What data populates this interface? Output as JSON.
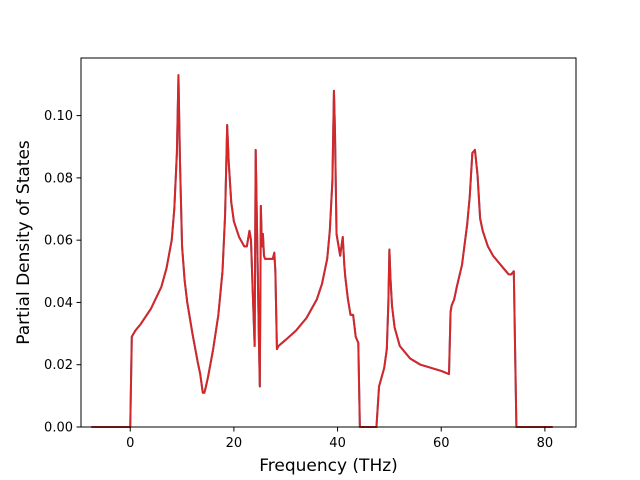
{
  "chart_data": {
    "type": "line",
    "title": "",
    "xlabel": "Frequency (THz)",
    "ylabel": "Partial Density of States",
    "xlim": [
      -9.5,
      86
    ],
    "ylim": [
      0,
      0.1185
    ],
    "xticks": [
      0,
      20,
      40,
      60,
      80
    ],
    "xtick_labels": [
      "0",
      "20",
      "40",
      "60",
      "80"
    ],
    "yticks": [
      0.0,
      0.02,
      0.04,
      0.06,
      0.08,
      0.1
    ],
    "ytick_labels": [
      "0.00",
      "0.02",
      "0.04",
      "0.06",
      "0.08",
      "0.10"
    ],
    "grid": false,
    "series": [
      {
        "color": "#2f7fbf",
        "x": [
          -7.5,
          -0.2,
          0.0,
          0.3,
          1.0,
          2.0,
          4.0,
          6.0,
          7.0,
          8.0,
          8.5,
          9.0,
          9.3,
          9.6,
          10.0,
          10.5,
          11.0,
          12.0,
          13.0,
          13.5,
          14.0,
          14.3,
          14.6,
          15.0,
          16.0,
          17.0,
          17.8,
          18.3,
          18.7,
          19.0,
          19.5,
          20.0,
          21.0,
          22.0,
          22.5,
          23.0,
          23.3,
          23.6,
          24.0,
          24.2,
          24.5,
          24.8,
          25.0,
          25.2,
          25.4,
          25.6,
          25.8,
          26.0,
          26.5,
          27.0,
          27.5,
          27.8,
          28.0,
          28.3,
          28.6,
          30.0,
          32.0,
          34.0,
          36.0,
          37.0,
          38.0,
          38.5,
          39.0,
          39.3,
          39.5,
          39.8,
          40.0,
          40.5,
          41.0,
          41.3,
          41.5,
          42.0,
          42.5,
          43.0,
          43.5,
          44.0,
          44.3,
          44.5,
          46.0,
          47.5,
          48.0,
          48.5,
          49.0,
          49.5,
          49.8,
          50.0,
          50.2,
          50.5,
          51.0,
          52.0,
          53.0,
          54.0,
          55.0,
          56.0,
          58.0,
          60.0,
          61.5,
          61.8,
          62.0,
          62.5,
          63.0,
          64.0,
          65.0,
          65.5,
          66.0,
          66.5,
          67.0,
          67.5,
          68.0,
          69.0,
          70.0,
          71.0,
          72.0,
          72.5,
          73.0,
          73.5,
          74.0,
          74.5,
          76.0,
          78.0,
          80.0,
          81.5
        ],
        "y": [
          0.0,
          0.0,
          0.0,
          0.029,
          0.031,
          0.033,
          0.038,
          0.045,
          0.051,
          0.06,
          0.07,
          0.088,
          0.113,
          0.085,
          0.058,
          0.047,
          0.04,
          0.03,
          0.021,
          0.017,
          0.011,
          0.011,
          0.013,
          0.016,
          0.025,
          0.036,
          0.05,
          0.068,
          0.097,
          0.085,
          0.072,
          0.066,
          0.061,
          0.058,
          0.058,
          0.063,
          0.06,
          0.045,
          0.026,
          0.089,
          0.06,
          0.03,
          0.013,
          0.071,
          0.058,
          0.062,
          0.055,
          0.054,
          0.054,
          0.054,
          0.054,
          0.056,
          0.05,
          0.025,
          0.026,
          0.028,
          0.031,
          0.035,
          0.041,
          0.046,
          0.054,
          0.063,
          0.079,
          0.108,
          0.095,
          0.062,
          0.06,
          0.055,
          0.061,
          0.052,
          0.048,
          0.041,
          0.036,
          0.036,
          0.029,
          0.027,
          0.0,
          0.0,
          0.0,
          0.0,
          0.013,
          0.016,
          0.019,
          0.025,
          0.04,
          0.057,
          0.048,
          0.039,
          0.032,
          0.026,
          0.024,
          0.022,
          0.021,
          0.02,
          0.019,
          0.018,
          0.017,
          0.037,
          0.039,
          0.041,
          0.045,
          0.052,
          0.065,
          0.074,
          0.088,
          0.089,
          0.081,
          0.067,
          0.063,
          0.058,
          0.055,
          0.053,
          0.051,
          0.05,
          0.049,
          0.049,
          0.05,
          0.0,
          0.0,
          0.0,
          0.0,
          0.0
        ]
      },
      {
        "color": "#d62728",
        "x": [
          -7.5,
          -0.2,
          0.0,
          0.3,
          1.0,
          2.0,
          4.0,
          6.0,
          7.0,
          8.0,
          8.5,
          9.0,
          9.3,
          9.6,
          10.0,
          10.5,
          11.0,
          12.0,
          13.0,
          13.5,
          14.0,
          14.3,
          14.6,
          15.0,
          16.0,
          17.0,
          17.8,
          18.3,
          18.7,
          19.0,
          19.5,
          20.0,
          21.0,
          22.0,
          22.5,
          23.0,
          23.3,
          23.6,
          24.0,
          24.2,
          24.5,
          24.8,
          25.0,
          25.2,
          25.4,
          25.6,
          25.8,
          26.0,
          26.5,
          27.0,
          27.5,
          27.8,
          28.0,
          28.3,
          28.6,
          30.0,
          32.0,
          34.0,
          36.0,
          37.0,
          38.0,
          38.5,
          39.0,
          39.3,
          39.5,
          39.8,
          40.0,
          40.5,
          41.0,
          41.3,
          41.5,
          42.0,
          42.5,
          43.0,
          43.5,
          44.0,
          44.3,
          44.5,
          46.0,
          47.5,
          48.0,
          48.5,
          49.0,
          49.5,
          49.8,
          50.0,
          50.2,
          50.5,
          51.0,
          52.0,
          53.0,
          54.0,
          55.0,
          56.0,
          58.0,
          60.0,
          61.5,
          61.8,
          62.0,
          62.5,
          63.0,
          64.0,
          65.0,
          65.5,
          66.0,
          66.5,
          67.0,
          67.5,
          68.0,
          69.0,
          70.0,
          71.0,
          72.0,
          72.5,
          73.0,
          73.5,
          74.0,
          74.5,
          76.0,
          78.0,
          80.0,
          81.5
        ],
        "y": [
          0.0,
          0.0,
          0.0,
          0.029,
          0.031,
          0.033,
          0.038,
          0.045,
          0.051,
          0.06,
          0.07,
          0.088,
          0.113,
          0.085,
          0.058,
          0.047,
          0.04,
          0.03,
          0.021,
          0.017,
          0.011,
          0.011,
          0.013,
          0.016,
          0.025,
          0.036,
          0.05,
          0.068,
          0.097,
          0.085,
          0.072,
          0.066,
          0.061,
          0.058,
          0.058,
          0.063,
          0.06,
          0.045,
          0.026,
          0.089,
          0.06,
          0.03,
          0.013,
          0.071,
          0.058,
          0.062,
          0.055,
          0.054,
          0.054,
          0.054,
          0.054,
          0.056,
          0.05,
          0.025,
          0.026,
          0.028,
          0.031,
          0.035,
          0.041,
          0.046,
          0.054,
          0.063,
          0.079,
          0.108,
          0.095,
          0.062,
          0.06,
          0.055,
          0.061,
          0.052,
          0.048,
          0.041,
          0.036,
          0.036,
          0.029,
          0.027,
          0.0,
          0.0,
          0.0,
          0.0,
          0.013,
          0.016,
          0.019,
          0.025,
          0.04,
          0.057,
          0.048,
          0.039,
          0.032,
          0.026,
          0.024,
          0.022,
          0.021,
          0.02,
          0.019,
          0.018,
          0.017,
          0.037,
          0.039,
          0.041,
          0.045,
          0.052,
          0.065,
          0.074,
          0.088,
          0.089,
          0.081,
          0.067,
          0.063,
          0.058,
          0.055,
          0.053,
          0.051,
          0.05,
          0.049,
          0.049,
          0.05,
          0.0,
          0.0,
          0.0,
          0.0,
          0.0
        ]
      }
    ]
  }
}
